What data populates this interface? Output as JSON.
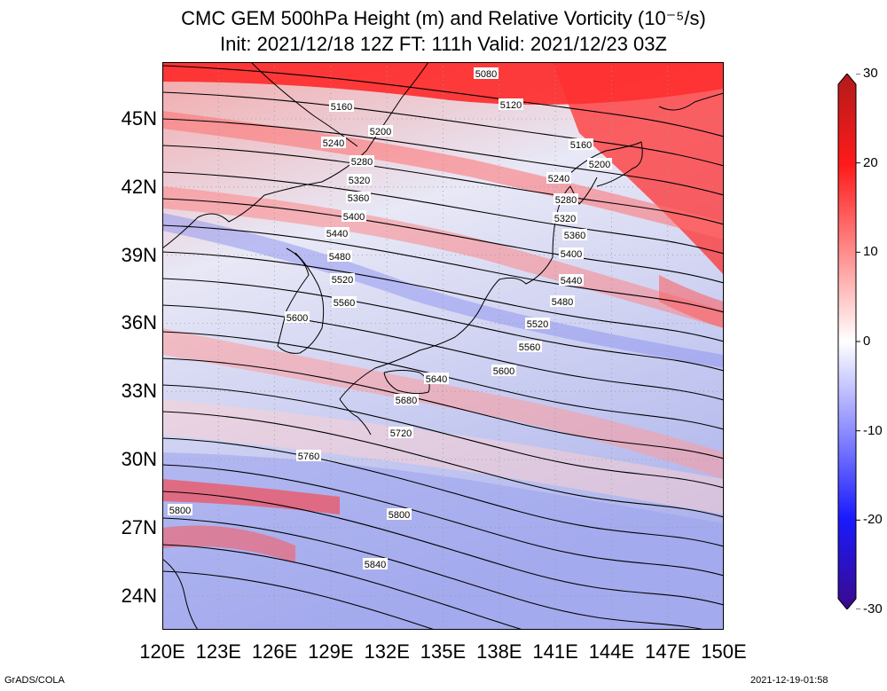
{
  "title": {
    "line1": "CMC GEM 500hPa Height (m) and Relative Vorticity (10⁻⁵/s)",
    "line2": "Init: 2021/12/18 12Z  FT: 111h  Valid: 2021/12/23 03Z"
  },
  "lat_labels": [
    "45N",
    "42N",
    "39N",
    "36N",
    "33N",
    "30N",
    "27N",
    "24N"
  ],
  "lon_labels": [
    "120E",
    "123E",
    "126E",
    "129E",
    "132E",
    "135E",
    "138E",
    "141E",
    "144E",
    "147E",
    "150E"
  ],
  "colorbar": {
    "labels": [
      "30",
      "20",
      "10",
      "0",
      "-10",
      "-20",
      "-30"
    ],
    "colors": [
      "#b21a1a",
      "#ff1a1a",
      "#ff9696",
      "#ffffff",
      "#9696ff",
      "#1a1aff",
      "#3a0a8a"
    ]
  },
  "contour_labels": [
    "5080",
    "5120",
    "5160",
    "5200",
    "5240",
    "5280",
    "5320",
    "5360",
    "5400",
    "5440",
    "5480",
    "5520",
    "5560",
    "5600",
    "5640",
    "5680",
    "5720",
    "5760",
    "5800",
    "5840",
    "5160",
    "5200",
    "5240",
    "5280",
    "5320",
    "5360",
    "5400",
    "5440",
    "5480",
    "5520",
    "5560",
    "5600",
    "5800"
  ],
  "footer": {
    "left": "GrADS/COLA",
    "right": "2021-12-19-01:58"
  },
  "chart_data": {
    "type": "heatmap",
    "title": "CMC GEM 500hPa Height (m) and Relative Vorticity (10⁻⁵/s)",
    "subtitle": "Init: 2021/12/18 12Z  FT: 111h  Valid: 2021/12/23 03Z",
    "x_range": [
      120,
      150
    ],
    "y_range": [
      22.5,
      47.5
    ],
    "color_range": [
      -30,
      30
    ],
    "height_contours_m": [
      5080,
      5120,
      5160,
      5200,
      5240,
      5280,
      5320,
      5360,
      5400,
      5440,
      5480,
      5520,
      5560,
      5600,
      5640,
      5680,
      5720,
      5760,
      5800,
      5840
    ]
  }
}
